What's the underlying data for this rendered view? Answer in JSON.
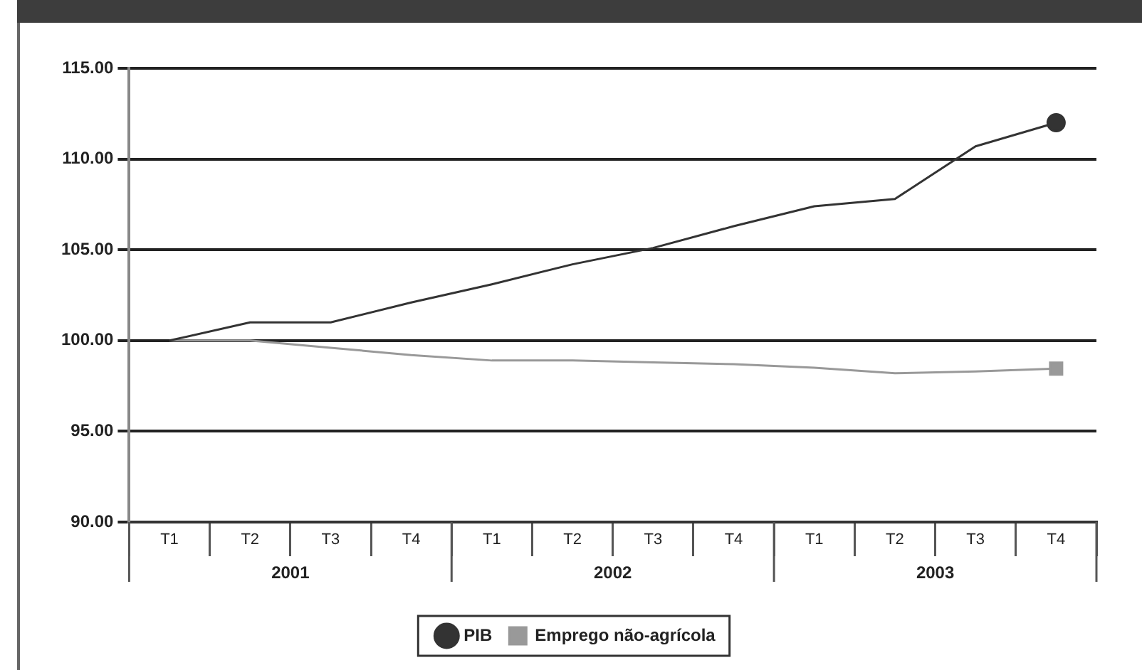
{
  "chart_data": {
    "type": "line",
    "categories": [
      "T1",
      "T2",
      "T3",
      "T4",
      "T1",
      "T2",
      "T3",
      "T4",
      "T1",
      "T2",
      "T3",
      "T4"
    ],
    "series": [
      {
        "name": "PIB",
        "color": "#333333",
        "values": [
          100,
          101,
          101,
          102.1,
          103.1,
          104.2,
          105.1,
          106.3,
          107.4,
          107.8,
          110.7,
          112
        ]
      },
      {
        "name": "Emprego não-agrícola",
        "color": "#999999",
        "values": [
          100,
          100,
          99.6,
          99.2,
          98.9,
          98.9,
          98.8,
          98.7,
          98.5,
          98.2,
          98.3,
          98.45
        ]
      }
    ],
    "annotations": [
      "2001",
      "2002",
      "2003"
    ],
    "ylim": [
      90,
      115
    ],
    "yticks": [
      {
        "value": 90,
        "label": "90.00"
      },
      {
        "value": 95,
        "label": "95.00"
      },
      {
        "value": 100,
        "label": "100.00"
      },
      {
        "value": 105,
        "label": "105.00"
      },
      {
        "value": 110,
        "label": "110.00"
      },
      {
        "value": 115,
        "label": "115.00"
      }
    ],
    "grid": "y",
    "legend": "bottom",
    "line_style": "solid"
  }
}
